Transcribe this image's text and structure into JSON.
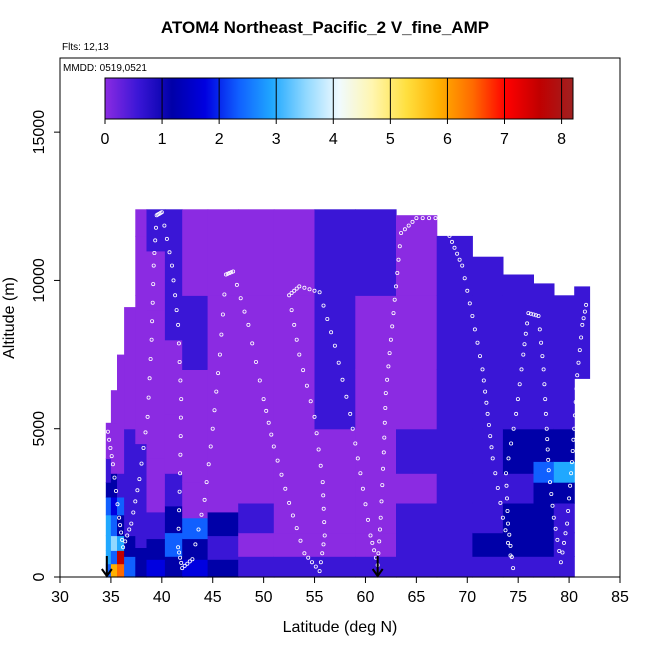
{
  "chart_data": {
    "type": "heatmap",
    "title": "ATOM4 Northeast_Pacific_2 V_fine_AMP",
    "flights": "Flts: 12,13",
    "mmdd": "MMDD: 0519,0521",
    "xlabel": "Latitude (deg N)",
    "ylabel": "Altitude (m)",
    "xlim": [
      30,
      85
    ],
    "ylim": [
      0,
      17500
    ],
    "xticks": [
      "30",
      "35",
      "40",
      "45",
      "50",
      "55",
      "60",
      "65",
      "70",
      "75",
      "80",
      "85"
    ],
    "yticks": [
      "0",
      "5000",
      "10000",
      "15000"
    ],
    "colorbar": {
      "min": 0,
      "max": 8.2,
      "ticks": [
        "0",
        "1",
        "2",
        "3",
        "4",
        "5",
        "6",
        "7",
        "8"
      ],
      "colors": [
        "#8b2be2",
        "#3a16d6",
        "#0000a8",
        "#0000e0",
        "#1060ff",
        "#20a8ff",
        "#90d8ff",
        "#f0faff",
        "#fff6b0",
        "#ffe040",
        "#ffb000",
        "#ff6a00",
        "#ff0000",
        "#c00000",
        "#a02020"
      ]
    },
    "profile_arrows_lat": [
      34.6,
      61.2
    ],
    "columns": [
      {
        "lat": [
          34.5,
          35.0
        ],
        "bands": [
          [
            0,
            450,
            2.3
          ],
          [
            450,
            900,
            3.2
          ],
          [
            900,
            1400,
            2.8
          ],
          [
            1400,
            2100,
            3.0
          ],
          [
            2100,
            2700,
            2.4
          ],
          [
            2700,
            3200,
            1.2
          ],
          [
            3200,
            4000,
            0.8
          ],
          [
            4000,
            5200,
            0.4
          ]
        ]
      },
      {
        "lat": [
          35.0,
          35.6
        ],
        "bands": [
          [
            0,
            450,
            5.8
          ],
          [
            450,
            900,
            2.6
          ],
          [
            900,
            1400,
            3.4
          ],
          [
            1400,
            2100,
            2.6
          ],
          [
            2100,
            2700,
            2.0
          ],
          [
            2700,
            3500,
            1.2
          ],
          [
            3500,
            5200,
            0.5
          ],
          [
            5200,
            6300,
            0.4
          ]
        ]
      },
      {
        "lat": [
          35.6,
          36.3
        ],
        "bands": [
          [
            0,
            450,
            6.4
          ],
          [
            450,
            900,
            7.6
          ],
          [
            900,
            1400,
            3.0
          ],
          [
            1400,
            2100,
            1.6
          ],
          [
            2100,
            2700,
            2.2
          ],
          [
            2700,
            3500,
            0.9
          ],
          [
            3500,
            5500,
            0.5
          ],
          [
            5500,
            7500,
            0.5
          ]
        ]
      },
      {
        "lat": [
          36.3,
          37.4
        ],
        "bands": [
          [
            0,
            700,
            2.2
          ],
          [
            700,
            1400,
            1.4
          ],
          [
            1400,
            2400,
            1.0
          ],
          [
            2400,
            3400,
            0.8
          ],
          [
            3400,
            5000,
            0.6
          ],
          [
            5000,
            7000,
            0.5
          ],
          [
            7000,
            9100,
            0.4
          ]
        ]
      },
      {
        "lat": [
          37.4,
          38.5
        ],
        "bands": [
          [
            0,
            1000,
            1.6
          ],
          [
            1000,
            2500,
            1.0
          ],
          [
            2500,
            4500,
            0.6
          ],
          [
            4500,
            7000,
            0.5
          ],
          [
            7000,
            9500,
            0.4
          ],
          [
            9500,
            11500,
            0.5
          ],
          [
            11500,
            12400,
            0.5
          ]
        ]
      },
      {
        "lat": [
          38.5,
          40.3
        ],
        "bands": [
          [
            0,
            600,
            2.0
          ],
          [
            600,
            1300,
            1.2
          ],
          [
            1300,
            2200,
            1.0
          ],
          [
            2200,
            4000,
            0.4
          ],
          [
            4000,
            6500,
            0.5
          ],
          [
            6500,
            9000,
            0.4
          ],
          [
            9000,
            11000,
            0.5
          ],
          [
            11000,
            12400,
            0.6
          ]
        ]
      },
      {
        "lat": [
          40.3,
          42.0
        ],
        "bands": [
          [
            0,
            700,
            1.5
          ],
          [
            700,
            1500,
            2.6
          ],
          [
            1500,
            2400,
            1.2
          ],
          [
            2400,
            3500,
            0.6
          ],
          [
            3500,
            5500,
            0.4
          ],
          [
            5500,
            8000,
            0.5
          ],
          [
            8000,
            10500,
            0.8
          ],
          [
            10500,
            12400,
            0.6
          ]
        ]
      },
      {
        "lat": [
          42.0,
          44.5
        ],
        "bands": [
          [
            0,
            600,
            2.0
          ],
          [
            600,
            1300,
            1.2
          ],
          [
            1300,
            2000,
            2.4
          ],
          [
            2000,
            3200,
            0.5
          ],
          [
            3200,
            5000,
            0.2
          ],
          [
            5000,
            7000,
            0.3
          ],
          [
            7000,
            9500,
            0.6
          ],
          [
            9500,
            12400,
            0.5
          ]
        ]
      },
      {
        "lat": [
          44.5,
          47.5
        ],
        "bands": [
          [
            0,
            600,
            1.5
          ],
          [
            600,
            1400,
            0.8
          ],
          [
            1400,
            2200,
            1.4
          ],
          [
            2200,
            3500,
            0.4
          ],
          [
            3500,
            5000,
            0.2
          ],
          [
            5000,
            7000,
            0.3
          ],
          [
            7000,
            9500,
            0.5
          ],
          [
            9500,
            12400,
            0.5
          ]
        ]
      },
      {
        "lat": [
          47.5,
          51.0
        ],
        "bands": [
          [
            0,
            700,
            0.9
          ],
          [
            700,
            1500,
            0.5
          ],
          [
            1500,
            2500,
            0.7
          ],
          [
            2500,
            3500,
            0.3
          ],
          [
            3500,
            5000,
            0.3
          ],
          [
            5000,
            7000,
            0.4
          ],
          [
            7000,
            9500,
            0.5
          ],
          [
            9500,
            12400,
            0.5
          ]
        ]
      },
      {
        "lat": [
          51.0,
          55.0
        ],
        "bands": [
          [
            0,
            700,
            0.8
          ],
          [
            700,
            1500,
            0.3
          ],
          [
            1500,
            2500,
            0.2
          ],
          [
            2500,
            3500,
            0.3
          ],
          [
            3500,
            5000,
            0.4
          ],
          [
            5000,
            7000,
            0.5
          ],
          [
            7000,
            9500,
            0.5
          ],
          [
            9500,
            12400,
            0.5
          ]
        ]
      },
      {
        "lat": [
          55.0,
          59.0
        ],
        "bands": [
          [
            0,
            700,
            0.6
          ],
          [
            700,
            1500,
            0.2
          ],
          [
            1500,
            2500,
            0.2
          ],
          [
            2500,
            3500,
            0.2
          ],
          [
            3500,
            5000,
            0.4
          ],
          [
            5000,
            7000,
            0.6
          ],
          [
            7000,
            9500,
            0.7
          ],
          [
            9500,
            12400,
            0.6
          ]
        ]
      },
      {
        "lat": [
          59.0,
          63.0
        ],
        "bands": [
          [
            0,
            700,
            0.6
          ],
          [
            700,
            1500,
            0.2
          ],
          [
            1500,
            2500,
            0.3
          ],
          [
            2500,
            3500,
            0.1
          ],
          [
            3500,
            5000,
            0.2
          ],
          [
            5000,
            7000,
            0.4
          ],
          [
            7000,
            9500,
            0.5
          ],
          [
            9500,
            12400,
            0.6
          ]
        ]
      },
      {
        "lat": [
          63.0,
          67.0
        ],
        "bands": [
          [
            0,
            700,
            0.7
          ],
          [
            700,
            1500,
            0.8
          ],
          [
            1500,
            2500,
            0.6
          ],
          [
            2500,
            3500,
            0.4
          ],
          [
            3500,
            5000,
            0.6
          ],
          [
            5000,
            7000,
            0.5
          ],
          [
            7000,
            9500,
            0.4
          ],
          [
            9500,
            12200,
            0.5
          ]
        ]
      },
      {
        "lat": [
          67.0,
          70.5
        ],
        "bands": [
          [
            0,
            700,
            0.9
          ],
          [
            700,
            1500,
            1.0
          ],
          [
            1500,
            2500,
            0.8
          ],
          [
            2500,
            3500,
            0.6
          ],
          [
            3500,
            5000,
            0.8
          ],
          [
            5000,
            7000,
            0.7
          ],
          [
            7000,
            9500,
            0.6
          ],
          [
            9500,
            11500,
            0.8
          ]
        ]
      },
      {
        "lat": [
          70.5,
          73.5
        ],
        "bands": [
          [
            0,
            700,
            1.0
          ],
          [
            700,
            1500,
            1.3
          ],
          [
            1500,
            2500,
            1.0
          ],
          [
            2500,
            3500,
            0.8
          ],
          [
            3500,
            5000,
            1.0
          ],
          [
            5000,
            7000,
            0.9
          ],
          [
            7000,
            9500,
            0.7
          ],
          [
            9500,
            10800,
            0.9
          ]
        ]
      },
      {
        "lat": [
          73.5,
          76.5
        ],
        "bands": [
          [
            0,
            700,
            1.0
          ],
          [
            700,
            1500,
            1.6
          ],
          [
            1500,
            2500,
            1.1
          ],
          [
            2500,
            3500,
            1.0
          ],
          [
            3500,
            5000,
            1.2
          ],
          [
            5000,
            7000,
            1.0
          ],
          [
            7000,
            9500,
            0.8
          ],
          [
            9500,
            10200,
            1.0
          ]
        ]
      },
      {
        "lat": [
          76.5,
          78.5
        ],
        "bands": [
          [
            0,
            700,
            1.0
          ],
          [
            700,
            1500,
            1.1
          ],
          [
            1500,
            2500,
            1.1
          ],
          [
            2500,
            3200,
            1.3
          ],
          [
            3200,
            3900,
            2.3
          ],
          [
            3900,
            5000,
            1.2
          ],
          [
            5000,
            7000,
            1.0
          ],
          [
            7000,
            9500,
            0.8
          ],
          [
            9500,
            9900,
            1.0
          ]
        ]
      },
      {
        "lat": [
          78.5,
          80.5
        ],
        "bands": [
          [
            0,
            700,
            1.0
          ],
          [
            700,
            1500,
            1.0
          ],
          [
            1500,
            2500,
            1.0
          ],
          [
            2500,
            3200,
            1.1
          ],
          [
            3200,
            3900,
            2.8
          ],
          [
            3900,
            5000,
            1.1
          ],
          [
            5000,
            7000,
            0.9
          ],
          [
            7000,
            9500,
            0.8
          ]
        ]
      },
      {
        "lat": [
          80.5,
          82.0
        ],
        "bands": [
          [
            6700,
            9800,
            0.8
          ]
        ]
      }
    ],
    "flight_track": [
      [
        34.7,
        4900
      ],
      [
        35.2,
        3800
      ],
      [
        35.8,
        2000
      ],
      [
        36.2,
        1000
      ],
      [
        37.0,
        1800
      ],
      [
        37.8,
        3300
      ],
      [
        38.6,
        5400
      ],
      [
        39.0,
        8000
      ],
      [
        39.2,
        10500
      ],
      [
        39.5,
        12200
      ],
      [
        40.0,
        12300
      ],
      [
        41.0,
        10500
      ],
      [
        41.6,
        8500
      ],
      [
        41.9,
        6000
      ],
      [
        41.8,
        3500
      ],
      [
        41.6,
        1000
      ],
      [
        42.0,
        300
      ],
      [
        43.0,
        600
      ],
      [
        44.2,
        2600
      ],
      [
        45.0,
        5000
      ],
      [
        45.7,
        7500
      ],
      [
        46.3,
        10200
      ],
      [
        47.0,
        10300
      ],
      [
        48.5,
        8500
      ],
      [
        50.0,
        6000
      ],
      [
        51.0,
        4400
      ],
      [
        52.5,
        2500
      ],
      [
        54.0,
        800
      ],
      [
        55.5,
        200
      ],
      [
        56.0,
        1400
      ],
      [
        55.8,
        3200
      ],
      [
        55.0,
        5400
      ],
      [
        53.5,
        7500
      ],
      [
        52.5,
        9500
      ],
      [
        53.5,
        9800
      ],
      [
        55.5,
        9600
      ],
      [
        57.0,
        7800
      ],
      [
        58.5,
        5500
      ],
      [
        59.5,
        3500
      ],
      [
        60.5,
        1400
      ],
      [
        61.2,
        400
      ],
      [
        61.5,
        2000
      ],
      [
        61.8,
        4200
      ],
      [
        62.0,
        6200
      ],
      [
        62.5,
        8000
      ],
      [
        63.0,
        9800
      ],
      [
        63.5,
        11600
      ],
      [
        65.0,
        12100
      ],
      [
        67.5,
        12100
      ],
      [
        68.5,
        11300
      ],
      [
        69.5,
        10500
      ],
      [
        70.5,
        8800
      ],
      [
        71.5,
        7000
      ],
      [
        72.0,
        5500
      ],
      [
        72.5,
        4000
      ],
      [
        73.5,
        2000
      ],
      [
        74.5,
        300
      ],
      [
        74.0,
        1800
      ],
      [
        73.8,
        3500
      ],
      [
        74.8,
        5500
      ],
      [
        75.5,
        7500
      ],
      [
        76.0,
        8900
      ],
      [
        77.0,
        8800
      ],
      [
        77.5,
        7000
      ],
      [
        77.8,
        5000
      ],
      [
        78.0,
        3600
      ],
      [
        78.5,
        2000
      ],
      [
        79.2,
        500
      ],
      [
        79.8,
        1800
      ],
      [
        80.2,
        3500
      ],
      [
        80.5,
        5000
      ],
      [
        80.8,
        6800
      ],
      [
        81.3,
        8500
      ],
      [
        81.8,
        9400
      ]
    ]
  }
}
